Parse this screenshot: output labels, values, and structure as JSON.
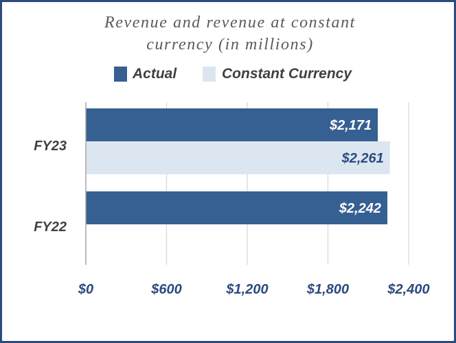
{
  "chart_data": {
    "type": "bar",
    "orientation": "horizontal",
    "title_lines": [
      "Revenue and revenue at constant",
      "currency (in millions)"
    ],
    "categories": [
      "FY23",
      "FY22"
    ],
    "series": [
      {
        "name": "Actual",
        "color": "#365f92",
        "label_color": "#ffffff",
        "values": [
          2171,
          2242
        ],
        "labels": [
          "$2,171",
          "$2,242"
        ]
      },
      {
        "name": "Constant Currency",
        "color": "#dce6f1",
        "label_color": "#2b4a7e",
        "values": [
          2261,
          null
        ],
        "labels": [
          "$2,261",
          null
        ]
      }
    ],
    "xticks": [
      0,
      600,
      1200,
      1800,
      2400
    ],
    "xtick_labels": [
      "$0",
      "$600",
      "$1,200",
      "$1,800",
      "$2,400"
    ],
    "xlim": [
      0,
      2400
    ],
    "grid": true,
    "legend_position": "top"
  }
}
